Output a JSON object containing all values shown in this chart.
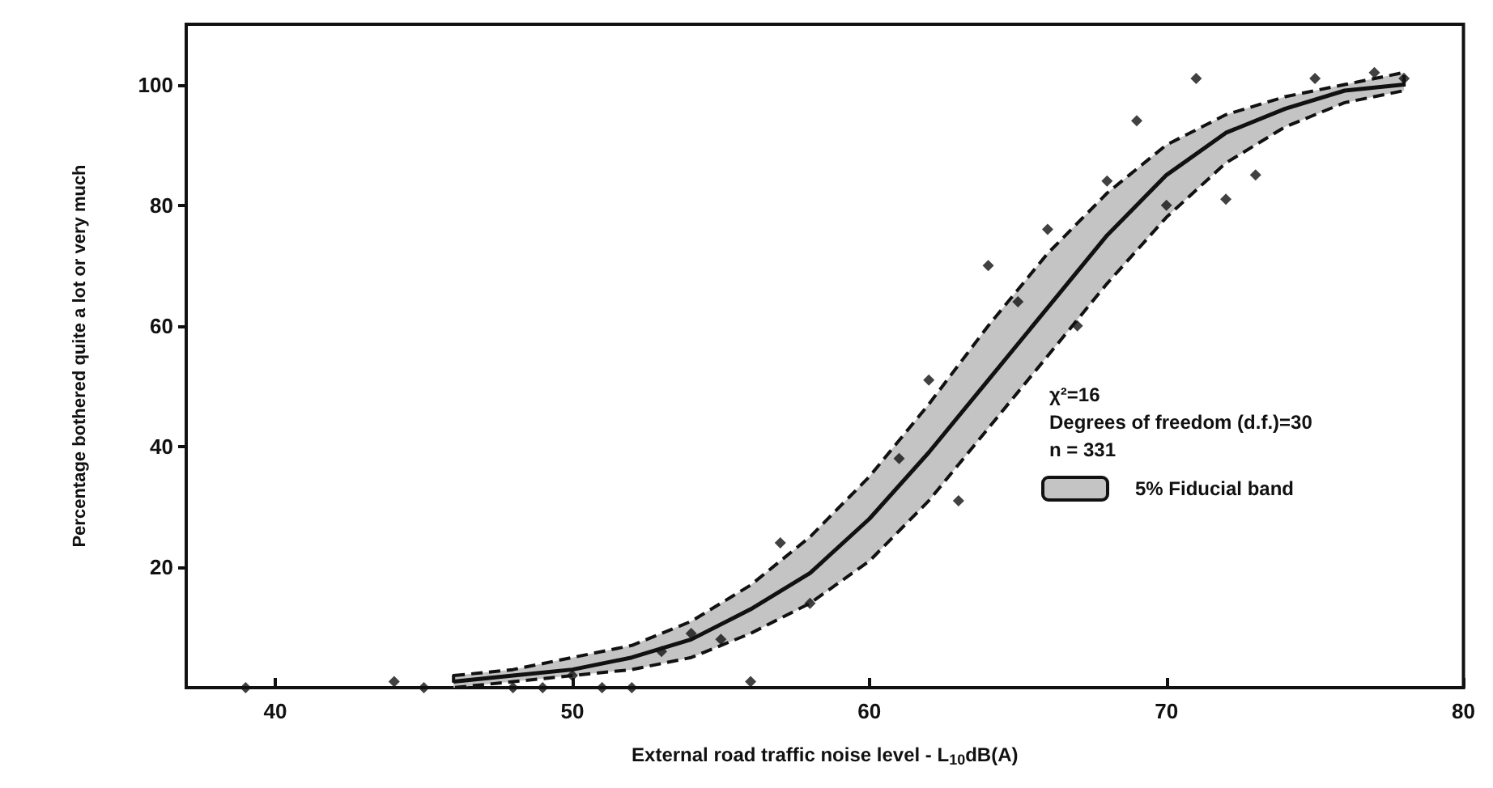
{
  "chart_data": {
    "type": "scatter",
    "xlabel": "External road traffic noise level - L$_{10}$dB(A)",
    "ylabel": "Percentage bothered quite a lot or very much",
    "xlim": [
      37,
      80
    ],
    "xticks": [
      40,
      50,
      60,
      70,
      80
    ],
    "ylim": [
      0,
      110
    ],
    "yticks": [
      20,
      40,
      60,
      80,
      100
    ],
    "grid": false,
    "marker": "diamond",
    "legend": "right",
    "annotations": [
      "χ²=16",
      "Degrees of freedom (d.f.)=30",
      "n = 331"
    ],
    "series": [
      {
        "color": "#111111",
        "x": [
          39,
          44,
          45,
          48,
          49,
          50,
          51,
          52,
          53,
          54,
          55,
          56,
          57,
          58,
          61,
          62,
          63,
          64,
          65,
          66,
          67,
          68,
          69,
          70,
          71,
          72,
          73,
          75,
          77,
          78
        ],
        "values": [
          0,
          1,
          0,
          0,
          0,
          2,
          0,
          0,
          6,
          9,
          8,
          1,
          24,
          14,
          38,
          51,
          31,
          70,
          64,
          76,
          60,
          84,
          94,
          80,
          101,
          81,
          85,
          101,
          102,
          101
        ]
      },
      {
        "type": "line",
        "name": "5% Fiducial band",
        "color": "#111111",
        "marker": "none",
        "line_style": "solid",
        "x": [
          46,
          48,
          50,
          52,
          54,
          56,
          58,
          60,
          62,
          64,
          66,
          68,
          70,
          72,
          74,
          76,
          78
        ],
        "values": [
          1,
          2,
          3,
          5,
          8,
          13,
          19,
          28,
          39,
          51,
          63,
          75,
          85,
          92,
          96,
          99,
          100
        ],
        "lower": [
          0,
          1,
          2,
          3,
          5,
          9,
          14,
          21,
          31,
          43,
          55,
          67,
          78,
          87,
          93,
          97,
          99
        ],
        "upper": [
          2,
          3,
          5,
          7,
          11,
          17,
          25,
          35,
          47,
          60,
          72,
          82,
          90,
          95,
          98,
          100,
          102
        ]
      }
    ]
  }
}
